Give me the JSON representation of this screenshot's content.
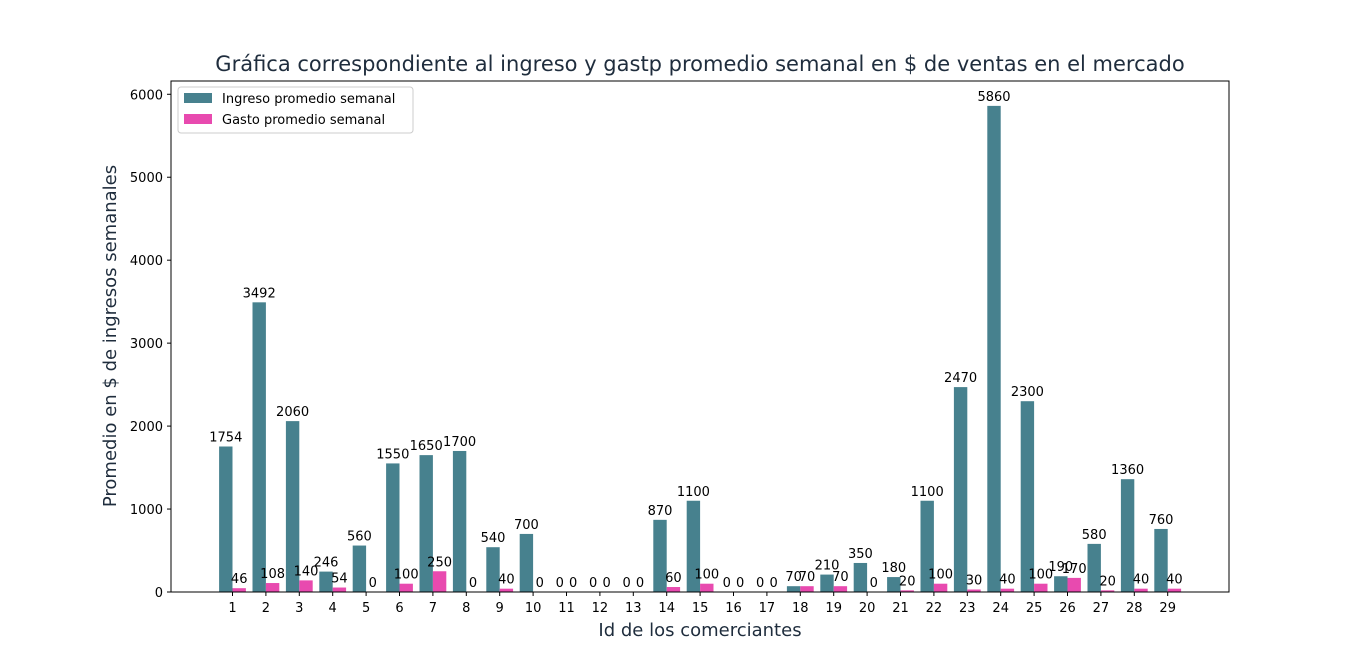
{
  "chart_data": {
    "type": "bar",
    "title": "Gráfica correspondiente al ingreso y gastp promedio semanal en $ de ventas en el mercado",
    "xlabel": "Id de los comerciantes",
    "ylabel": "Promedio  en $ de ingresos semanales",
    "categories": [
      "1",
      "2",
      "3",
      "4",
      "5",
      "6",
      "7",
      "8",
      "9",
      "10",
      "11",
      "12",
      "13",
      "14",
      "15",
      "16",
      "17",
      "18",
      "19",
      "20",
      "21",
      "22",
      "23",
      "24",
      "25",
      "26",
      "27",
      "28",
      "29"
    ],
    "series": [
      {
        "name": "Ingreso promedio semanal",
        "color": "#47818e",
        "values": [
          1754,
          3492,
          2060,
          246,
          560,
          1550,
          1650,
          1700,
          540,
          700,
          0,
          0,
          0,
          870,
          1100,
          0,
          0,
          70,
          210,
          350,
          180,
          1100,
          2470,
          5860,
          2300,
          190,
          580,
          1360,
          760
        ]
      },
      {
        "name": "Gasto promedio semanal",
        "color": "#e84aaf",
        "values": [
          46,
          108,
          140,
          54,
          0,
          100,
          250,
          0,
          40,
          0,
          0,
          0,
          0,
          60,
          100,
          0,
          0,
          70,
          70,
          0,
          20,
          100,
          30,
          40,
          100,
          170,
          20,
          40,
          40
        ]
      }
    ],
    "ylim": [
      0,
      6160
    ],
    "yticks": [
      0,
      1000,
      2000,
      3000,
      4000,
      5000,
      6000
    ],
    "legend_position": "top-left",
    "grid": false
  }
}
